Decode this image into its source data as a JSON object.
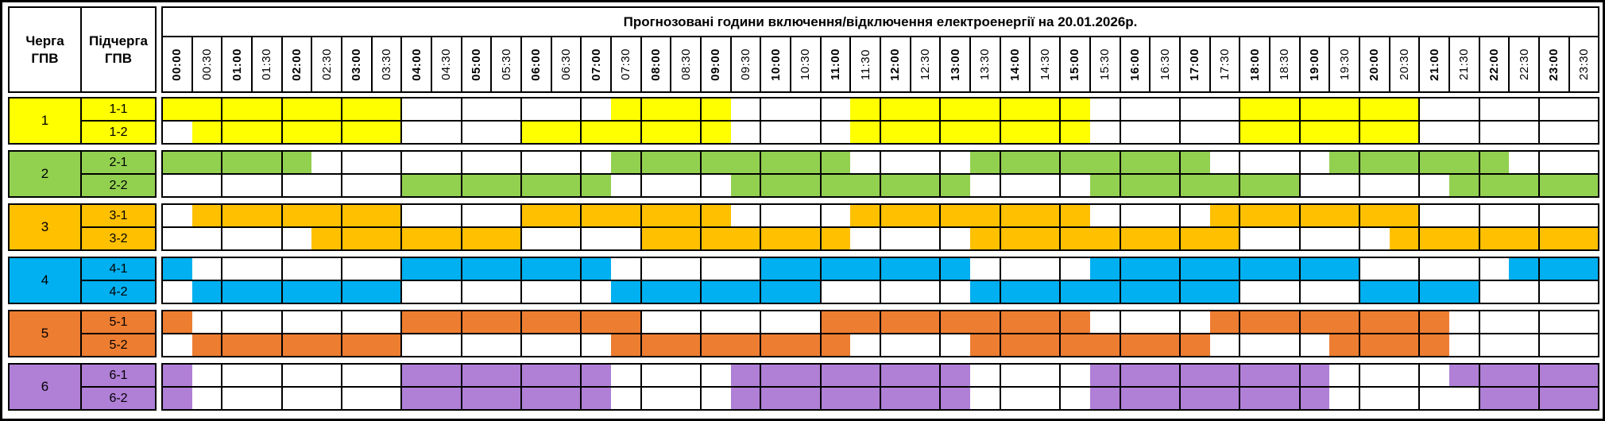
{
  "header": {
    "title": "Прогнозовані години включення/відключення електроенергії на 20.01.2026р.",
    "queue_col": "Черга\nГПВ",
    "subqueue_col": "Підчерга\nГПВ"
  },
  "times": [
    "00:00",
    "00:30",
    "01:00",
    "01:30",
    "02:00",
    "02:30",
    "03:00",
    "03:30",
    "04:00",
    "04:30",
    "05:00",
    "05:30",
    "06:00",
    "06:30",
    "07:00",
    "07:30",
    "08:00",
    "08:30",
    "09:00",
    "09:30",
    "10:00",
    "10:30",
    "11:00",
    "11:30",
    "12:00",
    "12:30",
    "13:00",
    "13:30",
    "14:00",
    "14:30",
    "15:00",
    "15:30",
    "16:00",
    "16:30",
    "17:00",
    "17:30",
    "18:00",
    "18:30",
    "19:00",
    "19:30",
    "20:00",
    "20:30",
    "21:00",
    "21:30",
    "22:00",
    "22:30",
    "23:00",
    "23:30"
  ],
  "queues": [
    {
      "label": "1",
      "color": "#FFFF00",
      "rows": [
        {
          "label": "1-1",
          "intervals": [
            [
              0,
              8
            ],
            [
              15,
              19
            ],
            [
              23,
              31
            ],
            [
              36,
              42
            ]
          ]
        },
        {
          "label": "1-2",
          "intervals": [
            [
              1,
              8
            ],
            [
              12,
              19
            ],
            [
              23,
              31
            ],
            [
              36,
              42
            ]
          ]
        }
      ]
    },
    {
      "label": "2",
      "color": "#92D050",
      "rows": [
        {
          "label": "2-1",
          "intervals": [
            [
              0,
              5
            ],
            [
              15,
              23
            ],
            [
              27,
              35
            ],
            [
              39,
              45
            ]
          ]
        },
        {
          "label": "2-2",
          "intervals": [
            [
              8,
              15
            ],
            [
              19,
              27
            ],
            [
              31,
              38
            ],
            [
              43,
              48
            ]
          ]
        }
      ]
    },
    {
      "label": "3",
      "color": "#FFC000",
      "rows": [
        {
          "label": "3-1",
          "intervals": [
            [
              1,
              8
            ],
            [
              12,
              19
            ],
            [
              23,
              31
            ],
            [
              35,
              42
            ]
          ]
        },
        {
          "label": "3-2",
          "intervals": [
            [
              5,
              12
            ],
            [
              16,
              23
            ],
            [
              27,
              36
            ],
            [
              41,
              48
            ]
          ]
        }
      ]
    },
    {
      "label": "4",
      "color": "#00B0F0",
      "rows": [
        {
          "label": "4-1",
          "intervals": [
            [
              0,
              1
            ],
            [
              8,
              15
            ],
            [
              20,
              27
            ],
            [
              31,
              40
            ],
            [
              45,
              48
            ]
          ]
        },
        {
          "label": "4-2",
          "intervals": [
            [
              1,
              8
            ],
            [
              15,
              22
            ],
            [
              27,
              36
            ],
            [
              40,
              44
            ]
          ]
        }
      ]
    },
    {
      "label": "5",
      "color": "#ED7D31",
      "rows": [
        {
          "label": "5-1",
          "intervals": [
            [
              0,
              1
            ],
            [
              8,
              16
            ],
            [
              22,
              31
            ],
            [
              35,
              43
            ]
          ]
        },
        {
          "label": "5-2",
          "intervals": [
            [
              1,
              8
            ],
            [
              15,
              23
            ],
            [
              27,
              35
            ],
            [
              39,
              43
            ]
          ]
        }
      ]
    },
    {
      "label": "6",
      "color": "#B07FD6",
      "rows": [
        {
          "label": "6-1",
          "intervals": [
            [
              0,
              1
            ],
            [
              8,
              15
            ],
            [
              19,
              27
            ],
            [
              31,
              39
            ],
            [
              43,
              48
            ]
          ]
        },
        {
          "label": "6-2",
          "intervals": [
            [
              0,
              1
            ],
            [
              8,
              15
            ],
            [
              19,
              27
            ],
            [
              31,
              39
            ],
            [
              44,
              48
            ]
          ]
        }
      ]
    }
  ],
  "chart_data": {
    "type": "heatmap",
    "title": "Прогнозовані години включення/відключення електроенергії на 20.01.2026р.",
    "x_categories": [
      "00:00",
      "00:30",
      "01:00",
      "01:30",
      "02:00",
      "02:30",
      "03:00",
      "03:30",
      "04:00",
      "04:30",
      "05:00",
      "05:30",
      "06:00",
      "06:30",
      "07:00",
      "07:30",
      "08:00",
      "08:30",
      "09:00",
      "09:30",
      "10:00",
      "10:30",
      "11:00",
      "11:30",
      "12:00",
      "12:30",
      "13:00",
      "13:30",
      "14:00",
      "14:30",
      "15:00",
      "15:30",
      "16:00",
      "16:30",
      "17:00",
      "17:30",
      "18:00",
      "18:30",
      "19:00",
      "19:30",
      "20:00",
      "20:30",
      "21:00",
      "21:30",
      "22:00",
      "22:30",
      "23:00",
      "23:30"
    ],
    "y_categories": [
      "1-1",
      "1-2",
      "2-1",
      "2-2",
      "3-1",
      "3-2",
      "4-1",
      "4-2",
      "5-1",
      "5-2",
      "6-1",
      "6-2"
    ],
    "rows": [
      {
        "queue": "1",
        "subqueue": "1-1",
        "color": "#FFFF00",
        "shaded_intervals": [
          "00:00–04:00",
          "07:30–09:30",
          "11:30–15:30",
          "18:00–21:00"
        ]
      },
      {
        "queue": "1",
        "subqueue": "1-2",
        "color": "#FFFF00",
        "shaded_intervals": [
          "00:30–04:00",
          "06:00–09:30",
          "11:30–15:30",
          "18:00–21:00"
        ]
      },
      {
        "queue": "2",
        "subqueue": "2-1",
        "color": "#92D050",
        "shaded_intervals": [
          "00:00–02:30",
          "07:30–11:30",
          "13:30–17:30",
          "19:30–22:30"
        ]
      },
      {
        "queue": "2",
        "subqueue": "2-2",
        "color": "#92D050",
        "shaded_intervals": [
          "04:00–07:30",
          "09:30–13:30",
          "15:30–19:00",
          "21:30–24:00"
        ]
      },
      {
        "queue": "3",
        "subqueue": "3-1",
        "color": "#FFC000",
        "shaded_intervals": [
          "00:30–04:00",
          "06:00–09:30",
          "11:30–15:30",
          "17:30–21:00"
        ]
      },
      {
        "queue": "3",
        "subqueue": "3-2",
        "color": "#FFC000",
        "shaded_intervals": [
          "02:30–06:00",
          "08:00–11:30",
          "13:30–18:00",
          "20:30–24:00"
        ]
      },
      {
        "queue": "4",
        "subqueue": "4-1",
        "color": "#00B0F0",
        "shaded_intervals": [
          "00:00–00:30",
          "04:00–07:30",
          "10:00–13:30",
          "15:30–20:00",
          "22:30–24:00"
        ]
      },
      {
        "queue": "4",
        "subqueue": "4-2",
        "color": "#00B0F0",
        "shaded_intervals": [
          "00:30–04:00",
          "07:30–11:00",
          "13:30–18:00",
          "20:00–22:00"
        ]
      },
      {
        "queue": "5",
        "subqueue": "5-1",
        "color": "#ED7D31",
        "shaded_intervals": [
          "00:00–00:30",
          "04:00–08:00",
          "11:00–15:30",
          "17:30–21:30"
        ]
      },
      {
        "queue": "5",
        "subqueue": "5-2",
        "color": "#ED7D31",
        "shaded_intervals": [
          "00:30–04:00",
          "07:30–11:30",
          "13:30–17:30",
          "19:30–21:30"
        ]
      },
      {
        "queue": "6",
        "subqueue": "6-1",
        "color": "#B07FD6",
        "shaded_intervals": [
          "00:00–00:30",
          "04:00–07:30",
          "09:30–13:30",
          "15:30–19:30",
          "21:30–24:00"
        ]
      },
      {
        "queue": "6",
        "subqueue": "6-2",
        "color": "#B07FD6",
        "shaded_intervals": [
          "00:00–00:30",
          "04:00–07:30",
          "09:30–13:30",
          "15:30–19:30",
          "22:00–24:00"
        ]
      }
    ],
    "legend_position": "none",
    "grid": true,
    "x_resolution_minutes": 30,
    "cell_border_resolution_minutes": 60
  }
}
